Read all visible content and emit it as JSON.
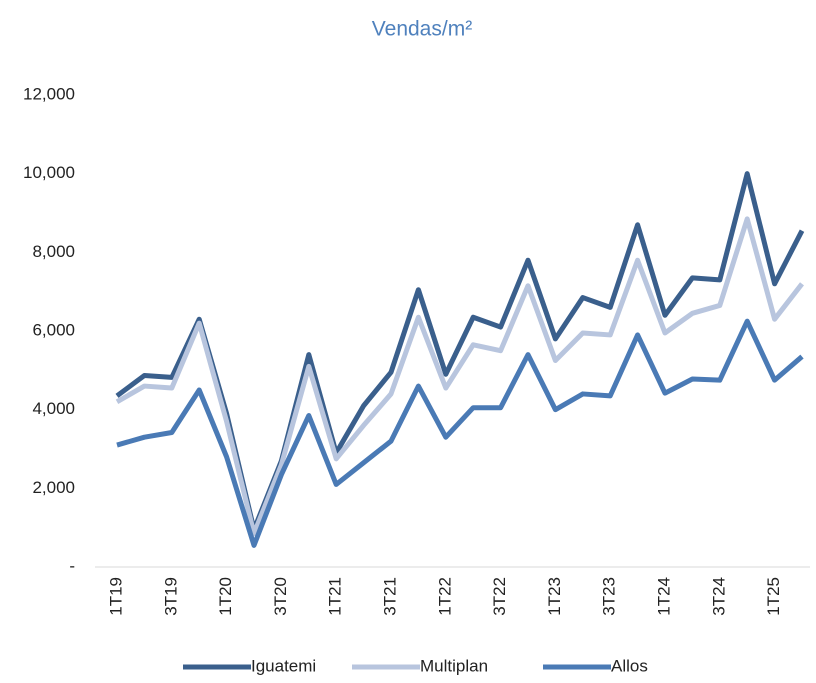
{
  "chart_data": {
    "type": "line",
    "title": "Vendas/m²",
    "categories": [
      "1T19",
      null,
      "3T19",
      null,
      "1T20",
      null,
      "3T20",
      null,
      "1T21",
      null,
      "3T21",
      null,
      "1T22",
      null,
      "3T22",
      null,
      "1T23",
      null,
      "3T23",
      null,
      "1T24",
      null,
      "3T24",
      null,
      "1T25",
      null
    ],
    "series": [
      {
        "name": "Iguatemi",
        "color": "#3a5f8c",
        "values": [
          4350,
          4870,
          4820,
          6300,
          3900,
          950,
          2700,
          5400,
          2900,
          4100,
          4950,
          7050,
          4900,
          6350,
          6100,
          7800,
          5800,
          6850,
          6600,
          8700,
          6400,
          7350,
          7300,
          10000,
          7200,
          8550
        ]
      },
      {
        "name": "Multiplan",
        "color": "#b8c5de",
        "values": [
          4200,
          4600,
          4550,
          6200,
          3700,
          850,
          2600,
          5100,
          2750,
          3600,
          4400,
          6350,
          4550,
          5650,
          5500,
          7150,
          5250,
          5950,
          5900,
          7800,
          5950,
          6450,
          6650,
          8850,
          6300,
          7200
        ]
      },
      {
        "name": "Allos",
        "color": "#4a7ab5",
        "values": [
          3100,
          3300,
          3420,
          4500,
          2800,
          550,
          2350,
          3850,
          2100,
          2650,
          3200,
          4600,
          3300,
          4050,
          4050,
          5400,
          4000,
          4400,
          4350,
          5900,
          4420,
          4780,
          4750,
          6250,
          4750,
          5350
        ]
      }
    ],
    "ylim": [
      0,
      12000
    ],
    "yticks": [
      {
        "value": 0,
        "label": "-"
      },
      {
        "value": 2000,
        "label": "2,000"
      },
      {
        "value": 4000,
        "label": "4,000"
      },
      {
        "value": 6000,
        "label": "6,000"
      },
      {
        "value": 8000,
        "label": "8,000"
      },
      {
        "value": 10000,
        "label": "10,000"
      },
      {
        "value": 12000,
        "label": "12,000"
      }
    ],
    "grid": false,
    "legend": "bottom"
  }
}
